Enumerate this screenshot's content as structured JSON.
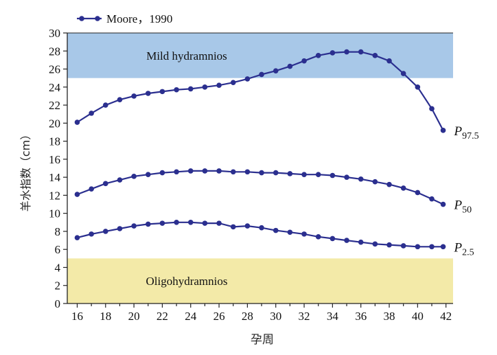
{
  "chart_data": {
    "type": "line",
    "title": "",
    "xlabel": "孕周",
    "ylabel": "羊水指数（cm）",
    "xlim": [
      15.3,
      42.5
    ],
    "ylim": [
      0,
      30
    ],
    "x_ticks": [
      "16",
      "18",
      "20",
      "22",
      "24",
      "26",
      "28",
      "30",
      "32",
      "34",
      "36",
      "38",
      "40",
      "42"
    ],
    "y_ticks": [
      "0",
      "2",
      "4",
      "6",
      "8",
      "10",
      "12",
      "14",
      "16",
      "18",
      "20",
      "22",
      "24",
      "26",
      "28",
      "30"
    ],
    "legend": {
      "label": "Moore，1990",
      "placement": "top-left"
    },
    "bands": [
      {
        "label": "Mild hydramnios",
        "y_from": 25,
        "y_to": 30,
        "color": "#a8c8e8"
      },
      {
        "label": "Oligohydramnios",
        "y_from": 0,
        "y_to": 5,
        "color": "#f3eaa8"
      }
    ],
    "line_color": "#2b2f8f",
    "x": [
      16,
      17,
      18,
      19,
      20,
      21,
      22,
      23,
      24,
      25,
      26,
      27,
      28,
      29,
      30,
      31,
      32,
      33,
      34,
      35,
      36,
      37,
      38,
      39,
      40,
      41,
      41.8
    ],
    "series": [
      {
        "label_main": "P",
        "label_sub": "97.5",
        "values": [
          20.1,
          21.1,
          22.0,
          22.6,
          23.0,
          23.3,
          23.5,
          23.7,
          23.8,
          24.0,
          24.2,
          24.5,
          24.9,
          25.4,
          25.8,
          26.3,
          26.9,
          27.5,
          27.8,
          27.9,
          27.9,
          27.5,
          26.9,
          25.5,
          24.0,
          21.6,
          19.2
        ]
      },
      {
        "label_main": "P",
        "label_sub": "50",
        "values": [
          12.1,
          12.7,
          13.3,
          13.7,
          14.1,
          14.3,
          14.5,
          14.6,
          14.7,
          14.7,
          14.7,
          14.6,
          14.6,
          14.5,
          14.5,
          14.4,
          14.3,
          14.3,
          14.2,
          14.0,
          13.8,
          13.5,
          13.2,
          12.8,
          12.3,
          11.6,
          11.0
        ]
      },
      {
        "label_main": "P",
        "label_sub": "2.5",
        "values": [
          7.3,
          7.7,
          8.0,
          8.3,
          8.6,
          8.8,
          8.9,
          9.0,
          9.0,
          8.9,
          8.9,
          8.5,
          8.6,
          8.4,
          8.1,
          7.9,
          7.7,
          7.4,
          7.2,
          7.0,
          6.8,
          6.6,
          6.5,
          6.4,
          6.3,
          6.3,
          6.3
        ]
      }
    ]
  }
}
